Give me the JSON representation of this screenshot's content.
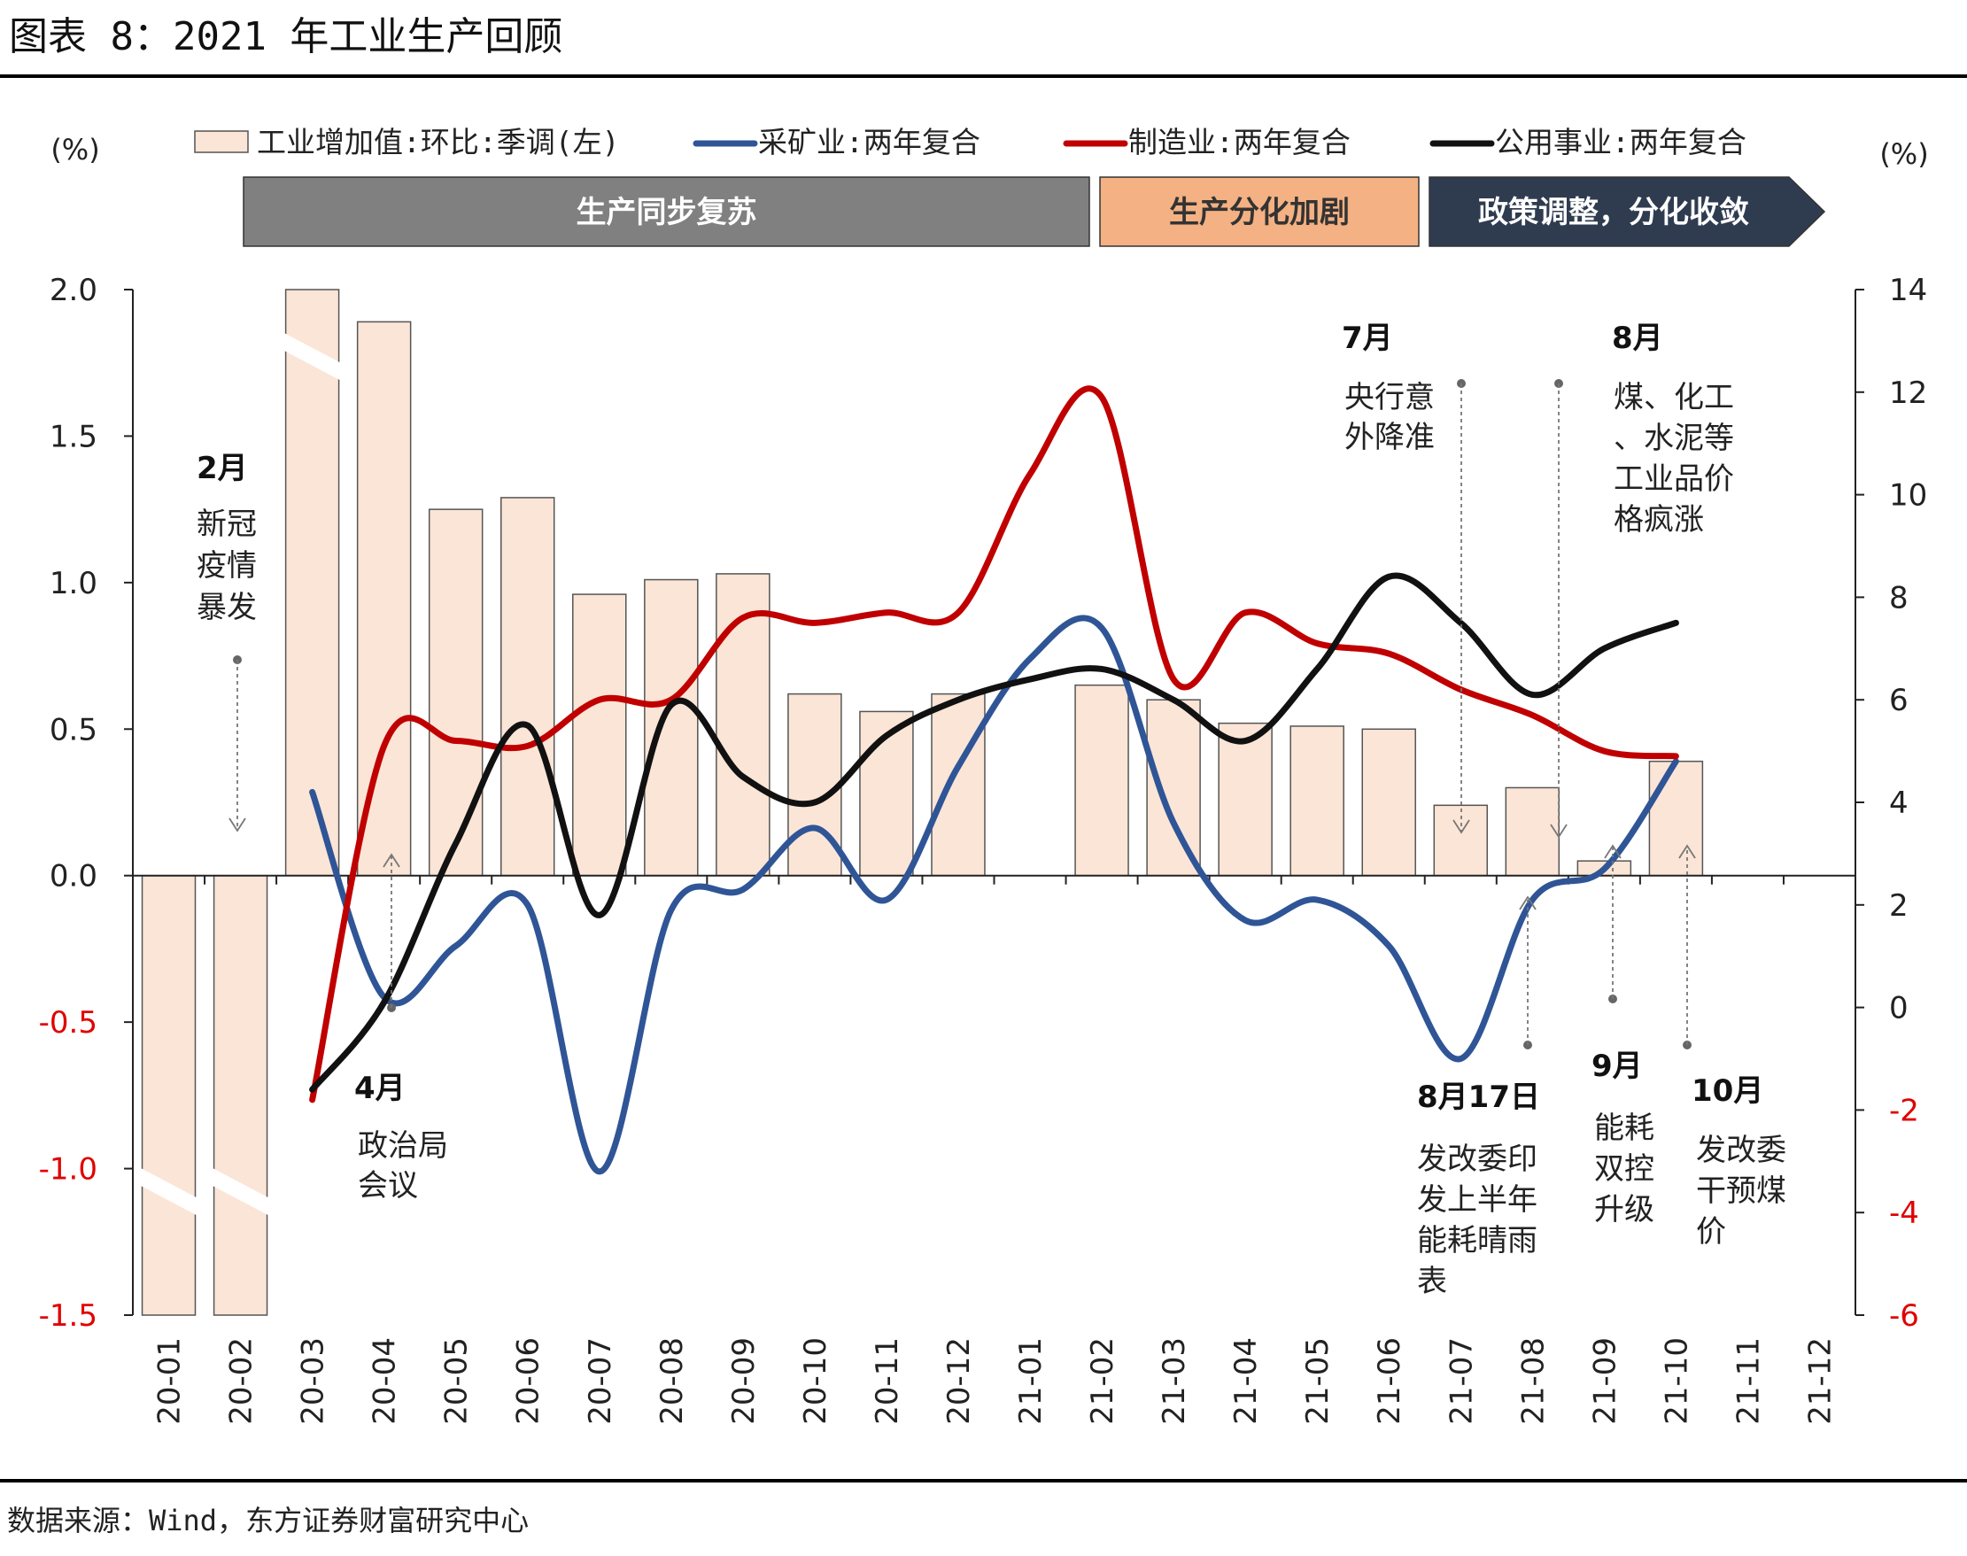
{
  "figure": {
    "title": "图表 8：2021 年工业生产回顾",
    "source": "数据来源：Wind，东方证券财富研究中心",
    "left_unit": "(%)",
    "right_unit": "(%)"
  },
  "phases": [
    {
      "label": "生产同步复苏",
      "from": "20-03",
      "to": "21-02",
      "color": "#808080",
      "text_color": "#ffffff"
    },
    {
      "label": "生产分化加剧",
      "from": "21-03",
      "to": "21-07",
      "color": "#f4b183",
      "text_color": "#333333"
    },
    {
      "label": "政策调整，分化收敛",
      "from": "21-07",
      "to": "21-12",
      "color": "#2f3c50",
      "text_color": "#ffffff"
    }
  ],
  "annotations": [
    {
      "title": "2月",
      "lines": [
        "新冠",
        "疫情",
        "暴发"
      ],
      "month": "20-02",
      "dir": "down"
    },
    {
      "title": "4月",
      "lines": [
        "政治局",
        "会议"
      ],
      "month": "20-04",
      "dir": "up"
    },
    {
      "title": "7月",
      "lines": [
        "央行意",
        "外降准"
      ],
      "month": "21-07",
      "dir": "down"
    },
    {
      "title": "8月",
      "lines": [
        "煤、化工",
        "、水泥等",
        "工业品价",
        "格疯涨"
      ],
      "month": "21-08",
      "dir": "down"
    },
    {
      "title": "8月17日",
      "lines": [
        "发改委印",
        "发上半年",
        "能耗晴雨",
        "表"
      ],
      "month": "21-08",
      "dir": "up"
    },
    {
      "title": "9月",
      "lines": [
        "能耗",
        "双控",
        "升级"
      ],
      "month": "21-09",
      "dir": "up"
    },
    {
      "title": "10月",
      "lines": [
        "发改委",
        "干预煤",
        "价"
      ],
      "month": "21-10",
      "dir": "up"
    }
  ],
  "colors": {
    "bar_fill": "#fbe5d6",
    "bar_stroke": "#555555",
    "mining": "#2f5597",
    "manufacturing": "#c00000",
    "utilities": "#111111",
    "negative_tick": "#e00000"
  },
  "chart_data": {
    "type": "bar",
    "categories": [
      "20-01",
      "20-02",
      "20-03",
      "20-04",
      "20-05",
      "20-06",
      "20-07",
      "20-08",
      "20-09",
      "20-10",
      "20-11",
      "20-12",
      "21-01",
      "21-02",
      "21-03",
      "21-04",
      "21-05",
      "21-06",
      "21-07",
      "21-08",
      "21-09",
      "21-10",
      "21-11",
      "21-12"
    ],
    "left_axis": {
      "ylim": [
        -1.5,
        2.0
      ],
      "ticks": [
        "2.0",
        "1.5",
        "1.0",
        "0.5",
        "0.0",
        "-0.5",
        "-1.0",
        "-1.5"
      ]
    },
    "right_axis": {
      "ylim": [
        -6,
        14
      ],
      "ticks": [
        "14",
        "12",
        "10",
        "8",
        "6",
        "4",
        "2",
        "0",
        "-2",
        "-4",
        "-6"
      ]
    },
    "series": [
      {
        "name": "工业增加值:环比:季调(左)",
        "type": "bar",
        "axis": "left",
        "values": [
          -1.5,
          -1.5,
          2.0,
          1.89,
          1.25,
          1.29,
          0.96,
          1.01,
          1.03,
          0.62,
          0.56,
          0.62,
          null,
          0.65,
          0.6,
          0.52,
          0.51,
          0.5,
          0.24,
          0.3,
          0.05,
          0.39,
          null,
          null
        ],
        "broken": [
          "20-01",
          "20-02",
          "20-03"
        ]
      },
      {
        "name": "采矿业:两年复合",
        "type": "line",
        "axis": "right",
        "values": [
          null,
          null,
          4.2,
          0.2,
          1.2,
          2.0,
          -3.2,
          1.9,
          2.3,
          3.5,
          2.1,
          4.7,
          6.8,
          7.4,
          3.6,
          1.7,
          2.1,
          1.2,
          -1.0,
          2.1,
          2.7,
          4.8,
          null,
          null
        ]
      },
      {
        "name": "制造业:两年复合",
        "type": "line",
        "axis": "right",
        "values": [
          null,
          null,
          -1.8,
          5.1,
          5.2,
          5.1,
          6.0,
          6.0,
          7.6,
          7.5,
          7.7,
          7.7,
          10.4,
          11.9,
          6.4,
          7.7,
          7.1,
          6.9,
          6.2,
          5.7,
          5.0,
          4.9,
          null,
          null
        ]
      },
      {
        "name": "公用事业:两年复合",
        "type": "line",
        "axis": "right",
        "values": [
          null,
          null,
          -1.6,
          0.1,
          3.2,
          5.5,
          1.8,
          5.9,
          4.5,
          4.0,
          5.3,
          6.0,
          6.4,
          6.6,
          6.0,
          5.2,
          6.6,
          8.4,
          7.5,
          6.1,
          7.0,
          7.5,
          null,
          null
        ]
      }
    ]
  }
}
